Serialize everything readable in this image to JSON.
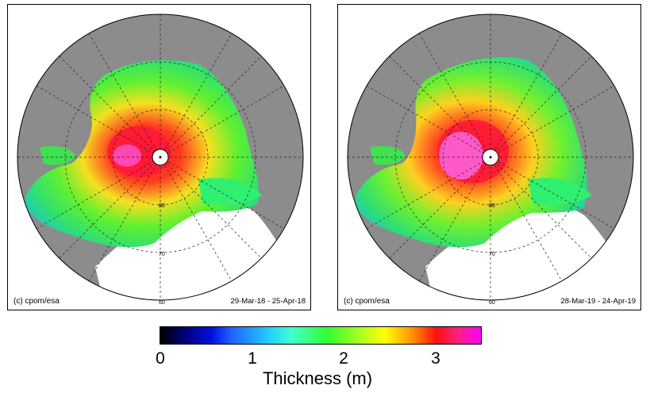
{
  "panels": [
    {
      "id": "left",
      "credit": "(c) cpom/esa",
      "date_range": "29-Mar-18 - 25-Apr-18",
      "lat_labels": [
        "80",
        "70",
        "60"
      ]
    },
    {
      "id": "right",
      "credit": "(c) cpom/esa",
      "date_range": "28-Mar-19 - 24-Apr-19",
      "lat_labels": [
        "80",
        "70",
        "60"
      ]
    }
  ],
  "colorbar": {
    "label": "Thickness (m)",
    "min": 0,
    "max": 3.5,
    "ticks": [
      "0",
      "1",
      "2",
      "3"
    ],
    "colors": [
      "#000000",
      "#000080",
      "#0010e0",
      "#2060ff",
      "#20d0ff",
      "#40ffd0",
      "#30ff30",
      "#b0ff20",
      "#ffff00",
      "#ff9a00",
      "#ff1010",
      "#ff2080",
      "#ff00ff"
    ]
  },
  "style": {
    "land": "#8c8c8c",
    "ocean_ice_free": "#ffffff",
    "ocean_dark": "#7d7d7d"
  }
}
